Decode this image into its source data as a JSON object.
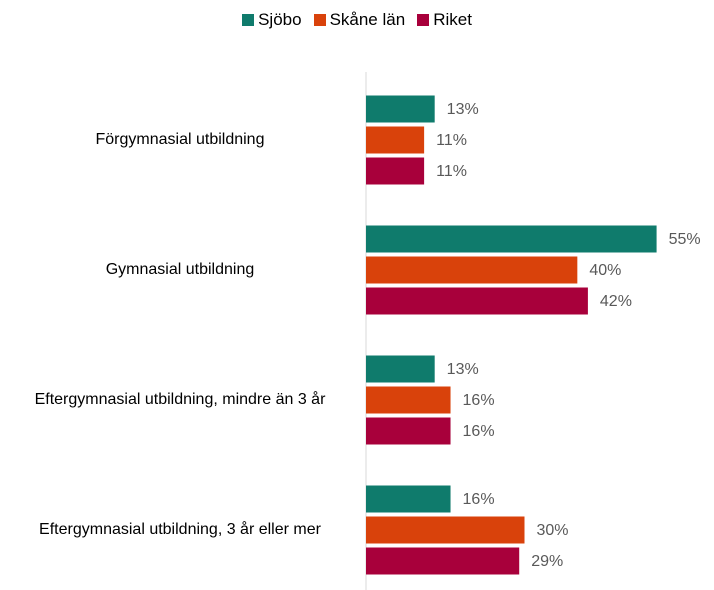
{
  "chart_data": {
    "type": "bar",
    "orientation": "horizontal",
    "categories": [
      "Förgymnasial utbildning",
      "Gymnasial utbildning",
      "Eftergymnasial utbildning, mindre än 3 år",
      "Eftergymnasial utbildning, 3 år eller mer"
    ],
    "series": [
      {
        "name": "Sjöbo",
        "color": "#0f7b6c",
        "values": [
          13,
          55,
          13,
          16
        ],
        "value_labels": [
          "13%",
          "55%",
          "13%",
          "16%"
        ]
      },
      {
        "name": "Skåne län",
        "color": "#d9420b",
        "values": [
          11,
          40,
          16,
          30
        ],
        "value_labels": [
          "11%",
          "40%",
          "16%",
          "30%"
        ]
      },
      {
        "name": "Riket",
        "color": "#a8003b",
        "values": [
          11,
          42,
          16,
          29
        ],
        "value_labels": [
          "11%",
          "42%",
          "16%",
          "29%"
        ]
      }
    ],
    "xlim": [
      0,
      60
    ],
    "legend": "top"
  }
}
